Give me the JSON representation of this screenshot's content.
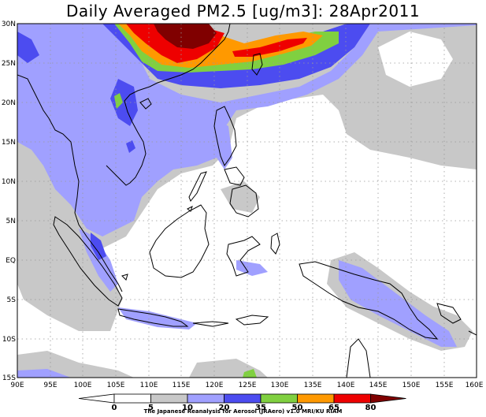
{
  "title": "Daily Averaged PM2.5 [ug/m3]: 28Apr2011",
  "credit": "The Japanese Reanalysis for Aerosol (JRAero) v1.0 MRI/KU RIAM",
  "map": {
    "lat_labels": [
      "30N",
      "25N",
      "20N",
      "15N",
      "10N",
      "5N",
      "EQ",
      "5S",
      "10S",
      "15S"
    ],
    "lon_labels": [
      "90E",
      "95E",
      "100E",
      "105E",
      "110E",
      "115E",
      "120E",
      "125E",
      "130E",
      "135E",
      "140E",
      "145E",
      "150E",
      "155E",
      "160E"
    ],
    "lon_range": [
      90,
      160
    ],
    "lat_range": [
      -15,
      30
    ]
  },
  "colorbar": {
    "levels": [
      "0",
      "5",
      "10",
      "20",
      "35",
      "50",
      "65",
      "80"
    ],
    "colors": [
      "#ffffff",
      "#ffffff",
      "#c8c8c8",
      "#a0a0ff",
      "#4c4cf0",
      "#80d040",
      "#ff9900",
      "#ee0000",
      "#800000"
    ]
  }
}
